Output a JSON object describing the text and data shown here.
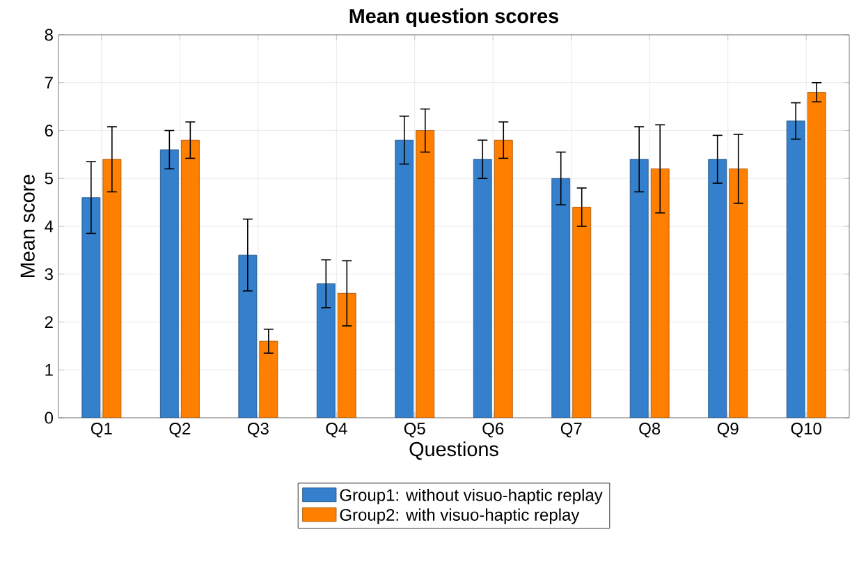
{
  "chart_data": {
    "type": "bar",
    "title": "Mean question scores",
    "xlabel": "Questions",
    "ylabel": "Mean score",
    "categories": [
      "Q1",
      "Q2",
      "Q3",
      "Q4",
      "Q5",
      "Q6",
      "Q7",
      "Q8",
      "Q9",
      "Q10"
    ],
    "series": [
      {
        "name": "Group1: without visuo-haptic replay",
        "color": "#3480cc",
        "values": [
          4.6,
          5.6,
          3.4,
          2.8,
          5.8,
          5.4,
          5.0,
          5.4,
          5.4,
          6.2
        ],
        "errors": [
          0.75,
          0.4,
          0.75,
          0.5,
          0.5,
          0.4,
          0.55,
          0.68,
          0.5,
          0.38
        ]
      },
      {
        "name": "Group2: with visuo-haptic replay",
        "color": "#ff8000",
        "values": [
          5.4,
          5.8,
          1.6,
          2.6,
          6.0,
          5.8,
          4.4,
          5.2,
          5.2,
          6.8
        ],
        "errors": [
          0.68,
          0.38,
          0.25,
          0.68,
          0.45,
          0.38,
          0.4,
          0.92,
          0.72,
          0.2
        ]
      }
    ],
    "ylim": [
      0,
      8
    ],
    "yticks": [
      0,
      1,
      2,
      3,
      4,
      5,
      6,
      7,
      8
    ],
    "grid": true,
    "legend": "bottom"
  }
}
